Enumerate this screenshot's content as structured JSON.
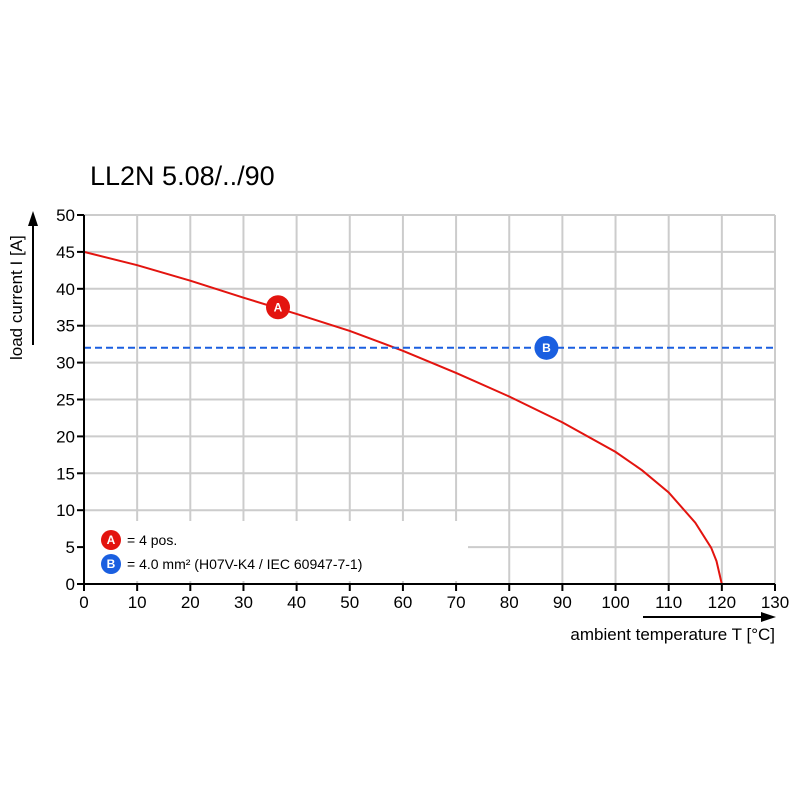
{
  "chart_data": {
    "type": "line",
    "title": "LL2N 5.08/../90",
    "xlabel": "ambient temperature T [°C]",
    "ylabel": "load current I [A]",
    "xlim": [
      0,
      130
    ],
    "ylim": [
      0,
      50
    ],
    "x_ticks": [
      0,
      10,
      20,
      30,
      40,
      50,
      60,
      70,
      80,
      90,
      100,
      110,
      120,
      130
    ],
    "y_ticks": [
      0,
      5,
      10,
      15,
      20,
      25,
      30,
      35,
      40,
      45,
      50
    ],
    "grid": true,
    "series": [
      {
        "marker": "A",
        "color": "#e3140f",
        "style": "solid",
        "x": [
          0,
          10,
          20,
          30,
          40,
          50,
          60,
          70,
          80,
          90,
          100,
          105,
          110,
          115,
          118,
          119,
          120
        ],
        "y": [
          45,
          43.2,
          41.1,
          38.8,
          36.6,
          34.3,
          31.6,
          28.6,
          25.4,
          21.9,
          17.9,
          15.4,
          12.4,
          8.3,
          4.9,
          3.1,
          0
        ]
      },
      {
        "marker": "B",
        "color": "#1a5fe0",
        "style": "dashed",
        "x": [
          0,
          130
        ],
        "y": [
          32,
          32
        ]
      }
    ],
    "markers": [
      {
        "letter": "A",
        "color": "#e3140f",
        "x": 36.5,
        "y": 37.5
      },
      {
        "letter": "B",
        "color": "#1a5fe0",
        "x": 87,
        "y": 32
      }
    ],
    "legend": {
      "placement": "bottom-left",
      "items": [
        {
          "marker": "A",
          "color": "#e3140f",
          "text": "= 4 pos."
        },
        {
          "marker": "B",
          "color": "#1a5fe0",
          "text": "= 4.0 mm² (H07V-K4 / IEC 60947-7-1)"
        }
      ]
    }
  }
}
